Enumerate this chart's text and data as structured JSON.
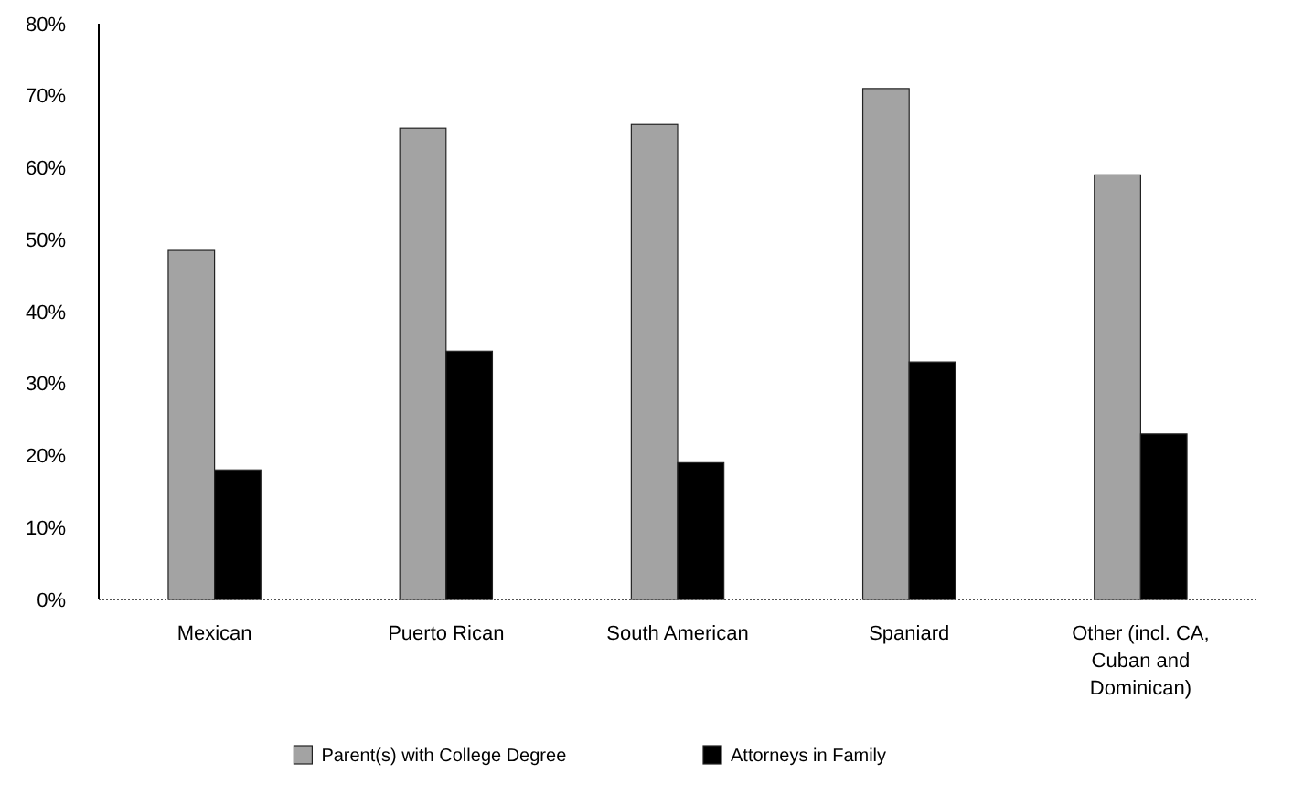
{
  "chart_data": {
    "type": "bar",
    "categories": [
      "Mexican",
      "Puerto Rican",
      "South American",
      "Spaniard",
      "Other (incl. CA, Cuban and Dominican)"
    ],
    "series": [
      {
        "name": "Parent(s) with College Degree",
        "color": "#a3a3a3",
        "values": [
          48.5,
          65.5,
          66,
          71,
          59
        ]
      },
      {
        "name": "Attorneys in Family",
        "color": "#000000",
        "values": [
          18,
          34.5,
          19,
          33,
          23
        ]
      }
    ],
    "ylim": [
      0,
      80
    ],
    "yticks": [
      {
        "value": 0,
        "label": "0%"
      },
      {
        "value": 10,
        "label": "10%"
      },
      {
        "value": 20,
        "label": "20%"
      },
      {
        "value": 30,
        "label": "30%"
      },
      {
        "value": 40,
        "label": "40%"
      },
      {
        "value": 50,
        "label": "50%"
      },
      {
        "value": 60,
        "label": "60%"
      },
      {
        "value": 70,
        "label": "70%"
      },
      {
        "value": 80,
        "label": "80%"
      }
    ],
    "grid": false,
    "legend": "bottom"
  }
}
